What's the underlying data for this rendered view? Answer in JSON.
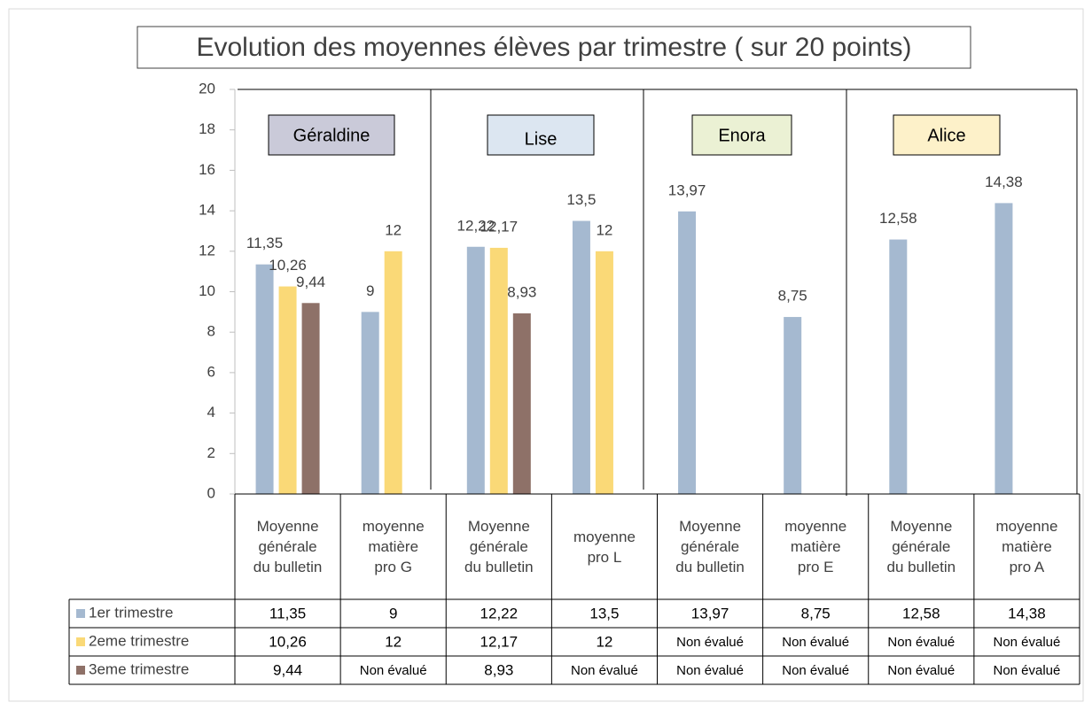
{
  "chart_data": {
    "type": "bar",
    "title": "Evolution des moyennes élèves par trimestre ( sur 20 points)",
    "annotations": [
      "Géraldine",
      "Lise",
      "Enora",
      "Alice"
    ],
    "categories": [
      "Moyenne générale du bulletin",
      "moyenne matière pro G",
      "Moyenne générale du bulletin",
      "moyenne pro L",
      "Moyenne générale du bulletin",
      "moyenne matière pro E",
      "Moyenne générale du bulletin",
      "moyenne matière pro A"
    ],
    "series": [
      {
        "name": "1er trimestre",
        "color": "#a5b9d0",
        "values": [
          11.35,
          9,
          12.22,
          13.5,
          13.97,
          8.75,
          12.58,
          14.38
        ],
        "value_labels": [
          "11,35",
          "9",
          "12,22",
          "13,5",
          "13,97",
          "8,75",
          "12,58",
          "14,38"
        ]
      },
      {
        "name": "2eme trimestre",
        "color": "#fad977",
        "values": [
          10.26,
          12,
          12.17,
          12,
          null,
          null,
          null,
          null
        ],
        "value_labels": [
          "10,26",
          "12",
          "12,17",
          "12",
          "Non évalué",
          "Non évalué",
          "Non évalué",
          "Non évalué"
        ]
      },
      {
        "name": "3eme trimestre",
        "color": "#8e7168",
        "values": [
          9.44,
          null,
          8.93,
          null,
          null,
          null,
          null,
          null
        ],
        "value_labels": [
          "9,44",
          "Non évalué",
          "8,93",
          "Non évalué",
          "Non évalué",
          "Non évalué",
          "Non évalué",
          "Non évalué"
        ]
      }
    ],
    "ylim": [
      0,
      20
    ],
    "yticks": [
      0,
      2,
      4,
      6,
      8,
      10,
      12,
      14,
      16,
      18,
      20
    ],
    "grid": false
  }
}
